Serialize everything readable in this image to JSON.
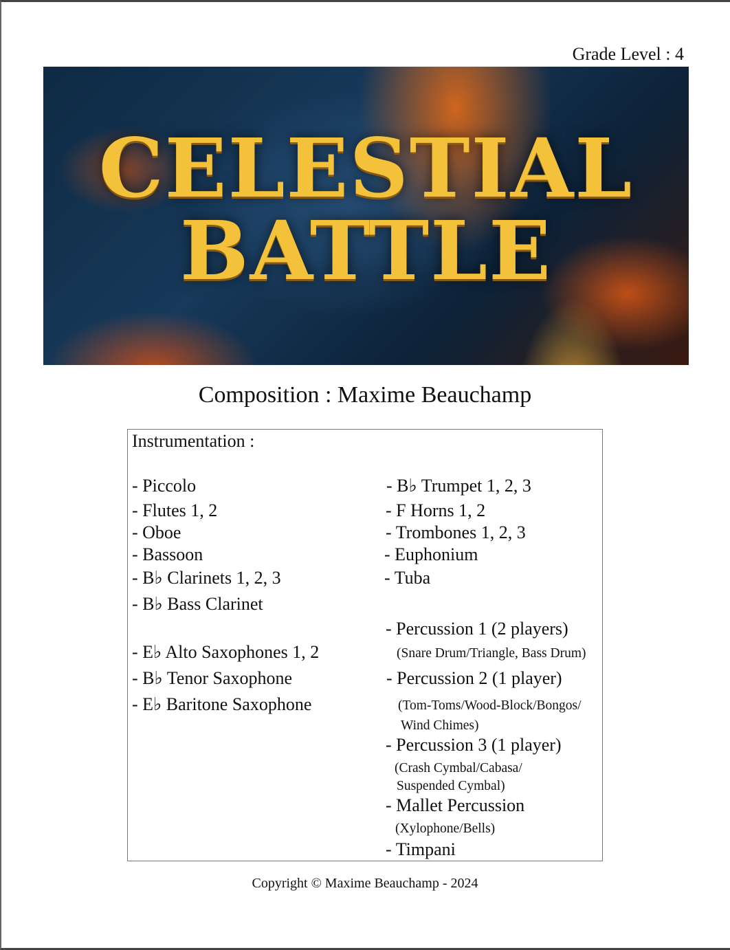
{
  "grade_level": "Grade Level : 4",
  "banner": {
    "title_line1": "CELESTIAL",
    "title_line2": "BATTLE"
  },
  "composer": "Composition : Maxime Beauchamp",
  "instrumentation": {
    "heading": "Instrumentation :",
    "left": [
      "- Piccolo",
      "- Flutes 1, 2",
      "- Oboe",
      "- Bassoon",
      "- B♭ Clarinets 1, 2, 3",
      "- B♭ Bass Clarinet",
      "- E♭ Alto Saxophones 1, 2",
      "- B♭ Tenor Saxophone",
      "- E♭ Baritone Saxophone"
    ],
    "right": [
      "- B♭ Trumpet 1, 2, 3",
      "- F Horns 1, 2",
      "- Trombones 1, 2, 3",
      "- Euphonium",
      "- Tuba",
      "- Percussion 1 (2 players)",
      "(Snare Drum/Triangle, Bass Drum)",
      "- Percussion 2 (1 player)",
      "(Tom-Toms/Wood-Block/Bongos/",
      "Wind Chimes)",
      "- Percussion 3 (1 player)",
      "(Crash Cymbal/Cabasa/",
      "Suspended Cymbal)",
      "- Mallet Percussion",
      "(Xylophone/Bells)",
      "- Timpani"
    ]
  },
  "copyright": "Copyright © Maxime Beauchamp - 2024"
}
